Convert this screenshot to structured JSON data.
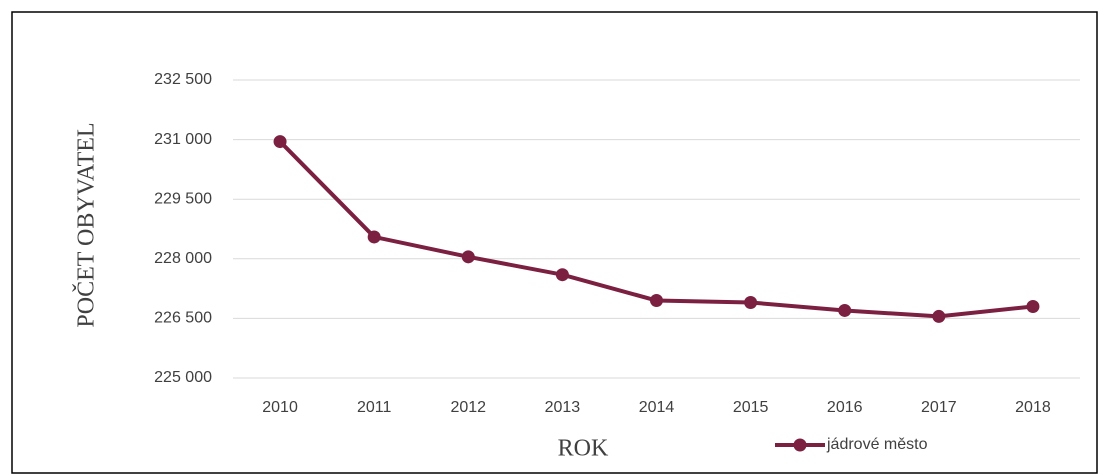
{
  "chart_data": {
    "type": "line",
    "xlabel": "ROK",
    "ylabel": "POČET OBYVATEL",
    "categories": [
      "2010",
      "2011",
      "2012",
      "2013",
      "2014",
      "2015",
      "2016",
      "2017",
      "2018"
    ],
    "series": [
      {
        "name": "jádrové město",
        "color": "#7b2040",
        "values": [
          230950,
          228550,
          228050,
          227600,
          226950,
          226900,
          226700,
          226550,
          226800
        ]
      }
    ],
    "ylim": [
      225000,
      232500
    ],
    "yticks": [
      {
        "value": 225000,
        "label": "225 000"
      },
      {
        "value": 226500,
        "label": "226 500"
      },
      {
        "value": 228000,
        "label": "228 000"
      },
      {
        "value": 229500,
        "label": "229 500"
      },
      {
        "value": 231000,
        "label": "231 000"
      },
      {
        "value": 232500,
        "label": "232 500"
      }
    ],
    "grid": true,
    "legend": "bottom-right"
  }
}
